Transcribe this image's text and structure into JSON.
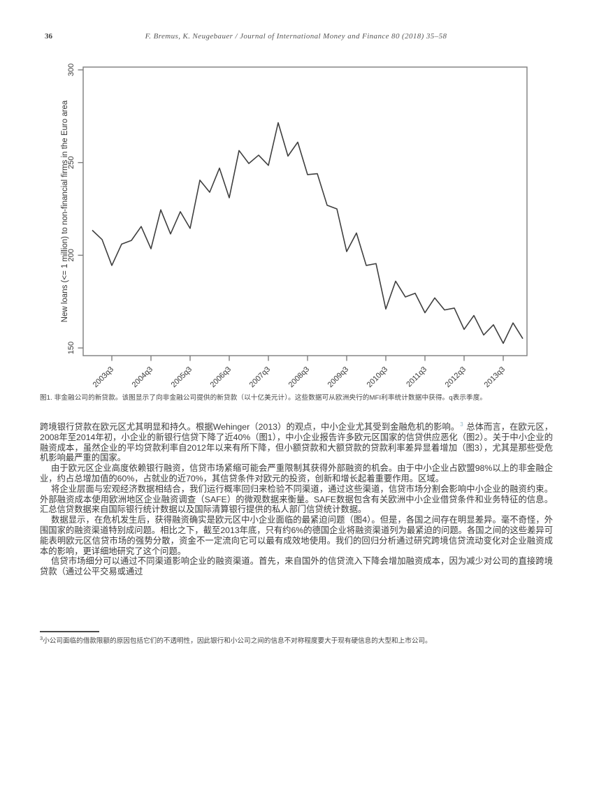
{
  "page": {
    "number": "36",
    "running_head": "F. Bremus, K. Neugebauer / Journal of International Money and Finance 80 (2018) 35–58"
  },
  "figure": {
    "caption": "图1. 非金融公司的新贷款。该图显示了向非金融公司提供的新贷款（以十亿美元计）。这些数据可从欧洲央行的MFI利率统计数据中获得。q表示季度。"
  },
  "chart_data": {
    "type": "line",
    "title": "",
    "xlabel": "",
    "ylabel": "New loans (<= 1 million) to non-financial firms in the Euro area",
    "ylim": [
      150,
      300
    ],
    "yticks": [
      150,
      200,
      250,
      300
    ],
    "grid": false,
    "legend": "none",
    "line_color": "#3f3f3f",
    "axis_color": "#7d7d7d",
    "x": [
      "2003q1",
      "2003q2",
      "2003q3",
      "2003q4",
      "2004q1",
      "2004q2",
      "2004q3",
      "2004q4",
      "2005q1",
      "2005q2",
      "2005q3",
      "2005q4",
      "2006q1",
      "2006q2",
      "2006q3",
      "2006q4",
      "2007q1",
      "2007q2",
      "2007q3",
      "2007q4",
      "2008q1",
      "2008q2",
      "2008q3",
      "2008q4",
      "2009q1",
      "2009q2",
      "2009q3",
      "2009q4",
      "2010q1",
      "2010q2",
      "2010q3",
      "2010q4",
      "2011q1",
      "2011q2",
      "2011q3",
      "2011q4",
      "2012q1",
      "2012q2",
      "2012q3",
      "2012q4",
      "2013q1",
      "2013q2",
      "2013q3",
      "2013q4",
      "2014q1"
    ],
    "series": [
      {
        "name": "New loans (<= 1 million) to non-financial firms in the Euro area",
        "values": [
          213.5,
          208.5,
          194.5,
          206,
          208,
          215.5,
          203.5,
          224.5,
          211.5,
          223.5,
          214.5,
          240.5,
          234,
          247,
          231,
          256.5,
          249.5,
          254,
          248.5,
          271.5,
          253.5,
          261,
          243.5,
          244,
          227,
          225,
          202,
          212,
          194.5,
          195.5,
          171,
          186,
          177.5,
          179.5,
          169,
          177,
          170.5,
          171.5,
          160,
          167.5,
          157,
          162.5,
          152.5,
          163.5,
          155
        ]
      }
    ],
    "xtick_indices": [
      2,
      6,
      10,
      14,
      18,
      22,
      26,
      30,
      34,
      38,
      42
    ],
    "xtick_labels": [
      "2003q3",
      "2004q3",
      "2005q3",
      "2006q3",
      "2007q3",
      "2008q3",
      "2009q3",
      "2010q3",
      "2011q3",
      "2012q3",
      "2013q3"
    ]
  },
  "body": {
    "p1_pre": "跨境银行贷款在欧元区尤其明显和持久。根据Wehinger（2013）的观点，中小企业尤其受到金融危机的影响。",
    "p1_sup": "3",
    "p1_post": " 总体而言，在欧元区，2008年至2014年初，小企业的新银行信贷下降了近40%（图1），中小企业报告许多欧元区国家的信贷供应恶化（图2）。关于中小企业的融资成本，虽然企业的平均贷款利率自2012年以来有所下降，但小额贷款和大额贷款的贷款利率差异显着增加（图3），尤其是那些受危机影响最严重的国家。",
    "p2": "由于欧元区企业高度依赖银行融资，信贷市场紧缩可能会严重限制其获得外部融资的机会。由于中小企业占欧盟98%以上的非金融企业，约占总增加值的60%，占就业的近70%，其信贷条件对欧元的投资，创新和增长起着重要作用。区域。",
    "p3": "将企业层面与宏观经济数据相结合，我们运行概率回归来检验不同渠道，通过这些渠道，信贷市场分割会影响中小企业的融资约束。外部融资成本使用欧洲地区企业融资调查（SAFE）的微观数据来衡量。SAFE数据包含有关欧洲中小企业借贷条件和业务特征的信息。汇总信贷数据来自国际银行统计数据以及国际清算银行提供的私人部门信贷统计数据。",
    "p4": "数据显示，在危机发生后，获得融资确实是欧元区中小企业面临的最紧迫问题（图4）。但是，各国之间存在明显差异。毫不奇怪，外围国家的融资渠道特别成问题。相比之下，截至2013年底，只有约6%的德国企业将融资渠道列为最紧迫的问题。各国之间的这些差异可能表明欧元区信贷市场的强势分散，资金不一定流向它可以最有成效地使用。我们的回归分析通过研究跨境信贷流动变化对企业融资成本的影响，更详细地研究了这个问题。",
    "p5": "信贷市场细分可以通过不同渠道影响企业的融资渠道。首先，来自国外的信贷流入下降会增加融资成本，因为减少对公司的直接跨境贷款（通过公平交易或通过"
  },
  "footnote": {
    "sup": "3",
    "text": "小公司面临的借款限额的原因包括它们的不透明性，因此银行和小公司之间的信息不对称程度要大于现有硬信息的大型和上市公司。"
  }
}
